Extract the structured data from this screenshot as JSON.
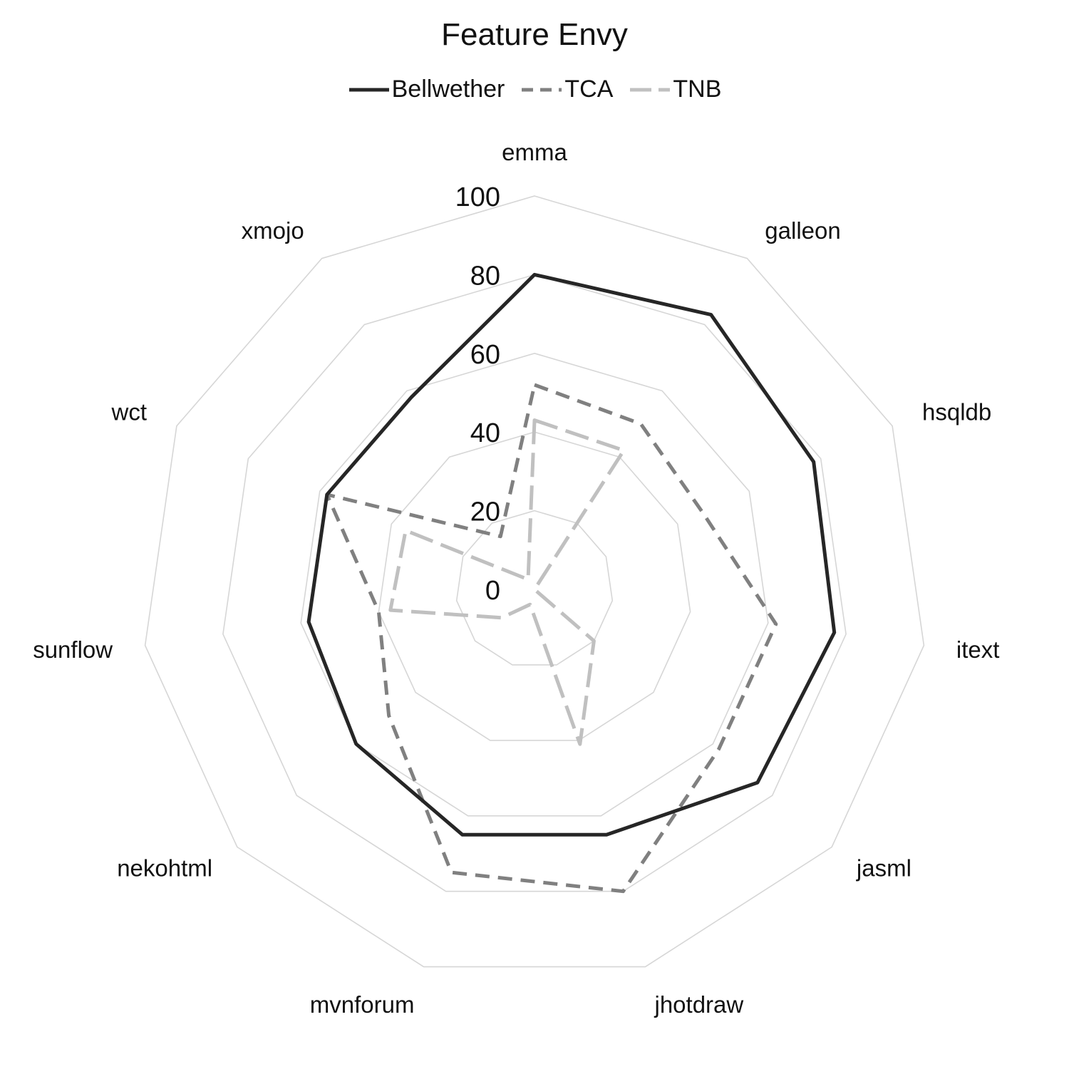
{
  "chart_data": {
    "type": "radar",
    "title": "Feature Envy",
    "categories": [
      "emma",
      "galleon",
      "hsqldb",
      "itext",
      "jasml",
      "jhotdraw",
      "mvnforum",
      "nekohtml",
      "sunflow",
      "wct",
      "xmojo"
    ],
    "rlim": [
      0,
      100
    ],
    "ticks": [
      "0",
      "20",
      "40",
      "60",
      "80",
      "100"
    ],
    "grid": true,
    "legend_position": "top",
    "series": [
      {
        "name": "Bellwether",
        "values": [
          80,
          83,
          78,
          77,
          75,
          65,
          65,
          60,
          58,
          58,
          58
        ],
        "color": "#262626",
        "style": "solid"
      },
      {
        "name": "TCA",
        "values": [
          52,
          50,
          47,
          62,
          62,
          80,
          75,
          49,
          40,
          58,
          16
        ],
        "color": "#808080",
        "style": "dashed"
      },
      {
        "name": "TNB",
        "values": [
          43,
          42,
          0,
          0,
          20,
          41,
          4,
          11,
          37,
          36,
          3
        ],
        "color": "#c0c0c0",
        "style": "dashed"
      }
    ]
  }
}
